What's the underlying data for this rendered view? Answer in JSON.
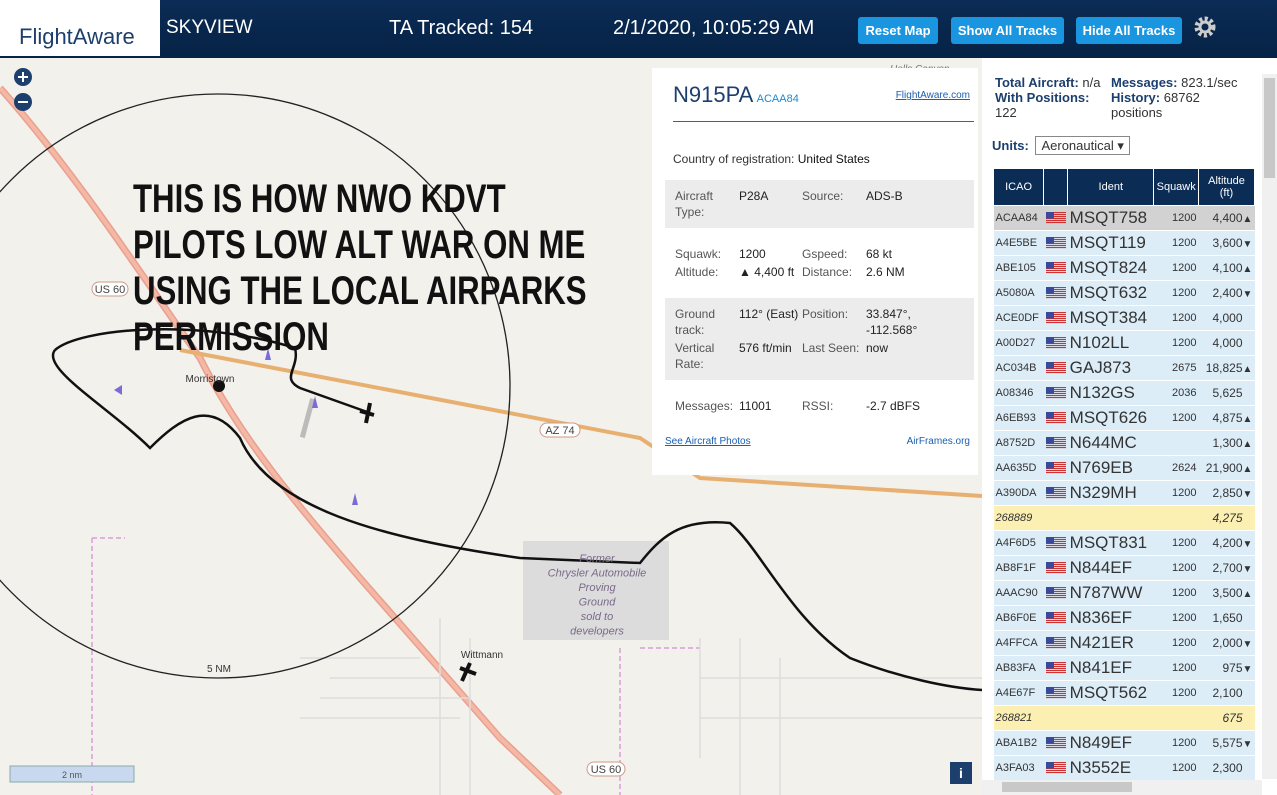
{
  "header": {
    "logo": "FlightAware",
    "app": "SKYVIEW",
    "tracked": "TA Tracked: 154",
    "datetime": "2/1/2020, 10:05:29 AM",
    "buttons": [
      "Reset Map",
      "Show All Tracks",
      "Hide All Tracks"
    ]
  },
  "map": {
    "annotation": [
      "THIS IS HOW NWO KDVT",
      "PILOTS LOW ALT WAR ON ME",
      "USING THE LOCAL AIRPARKS",
      "PERMISSION"
    ],
    "labels": {
      "us60_north": "US 60",
      "morristown": "Morristown",
      "az74": "AZ 74",
      "former": [
        "Former",
        "Chrysler Automobile",
        "Proving",
        "Ground",
        "sold to",
        "developers"
      ],
      "wittmann": "Wittmann",
      "range": "5 NM",
      "us60_south": "US 60",
      "scale": "2 nm",
      "corner": "Hells Canyon"
    }
  },
  "popup": {
    "registration": "N915PA",
    "hex": "ACAA84",
    "link": "FlightAware.com",
    "country_label": "Country of registration:",
    "country": "United States",
    "sections": [
      {
        "shaded": true,
        "fields": [
          {
            "label": "Aircraft Type:",
            "value": "P28A"
          },
          {
            "label": "Source:",
            "value": "ADS-B"
          }
        ]
      },
      {
        "shaded": false,
        "fields": [
          {
            "label": "Squawk:",
            "value": "1200"
          },
          {
            "label": "Gspeed:",
            "value": "68 kt"
          },
          {
            "label": "Altitude:",
            "value": "▲ 4,400 ft"
          },
          {
            "label": "Distance:",
            "value": "2.6 NM"
          }
        ]
      },
      {
        "shaded": true,
        "fields": [
          {
            "label": "Ground track:",
            "value": "112° (East)"
          },
          {
            "label": "Position:",
            "value": "33.847°, -112.568°"
          },
          {
            "label": "Vertical Rate:",
            "value": "576 ft/min"
          },
          {
            "label": "Last Seen:",
            "value": "now"
          }
        ]
      },
      {
        "shaded": false,
        "fields": [
          {
            "label": "Messages:",
            "value": "11001"
          },
          {
            "label": "RSSI:",
            "value": "-2.7 dBFS"
          }
        ]
      }
    ],
    "photos": "See Aircraft Photos",
    "airframes": "AirFrames.org"
  },
  "sidebar": {
    "stats": [
      {
        "label": "Total Aircraft:",
        "value": "n/a"
      },
      {
        "label": "Messages:",
        "value": "823.1/sec"
      },
      {
        "label": "With Positions:",
        "value": "122"
      },
      {
        "label": "History:",
        "value": "68762 positions"
      }
    ],
    "units_label": "Units:",
    "units": "Aeronautical",
    "table": {
      "headers": [
        "ICAO",
        "Ident",
        "Squawk",
        "Altitude (ft)"
      ],
      "rows": [
        {
          "icao": "ACAA84",
          "ident": "MSQT758",
          "squawk": "1200",
          "altitude": "4,400",
          "trend": "▲",
          "selected": true
        },
        {
          "icao": "A4E5BE",
          "ident": "MSQT119",
          "squawk": "1200",
          "altitude": "3,600",
          "trend": "▼"
        },
        {
          "icao": "ABE105",
          "ident": "MSQT824",
          "squawk": "1200",
          "altitude": "4,100",
          "trend": "▲"
        },
        {
          "icao": "A5080A",
          "ident": "MSQT632",
          "squawk": "1200",
          "altitude": "2,400",
          "trend": "▼"
        },
        {
          "icao": "ACE0DF",
          "ident": "MSQT384",
          "squawk": "1200",
          "altitude": "4,000"
        },
        {
          "icao": "A00D27",
          "ident": "N102LL",
          "squawk": "1200",
          "altitude": "4,000"
        },
        {
          "icao": "AC034B",
          "ident": "GAJ873",
          "squawk": "2675",
          "altitude": "18,825",
          "trend": "▲"
        },
        {
          "icao": "A08346",
          "ident": "N132GS",
          "squawk": "2036",
          "altitude": "5,625"
        },
        {
          "icao": "A6EB93",
          "ident": "MSQT626",
          "squawk": "1200",
          "altitude": "4,875",
          "trend": "▲"
        },
        {
          "icao": "A8752D",
          "ident": "N644MC",
          "altitude": "1,300",
          "trend": "▲"
        },
        {
          "icao": "AA635D",
          "ident": "N769EB",
          "squawk": "2624",
          "altitude": "21,900",
          "trend": "▲"
        },
        {
          "icao": "A390DA",
          "ident": "N329MH",
          "squawk": "1200",
          "altitude": "2,850",
          "trend": "▼"
        },
        {
          "icao": "268889",
          "altitude": "4,275"
        },
        {
          "icao": "A4F6D5",
          "ident": "MSQT831",
          "squawk": "1200",
          "altitude": "4,200",
          "trend": "▼"
        },
        {
          "icao": "AB8F1F",
          "ident": "N844EF",
          "squawk": "1200",
          "altitude": "2,700",
          "trend": "▼"
        },
        {
          "icao": "AAAC90",
          "ident": "N787WW",
          "squawk": "1200",
          "altitude": "3,500",
          "trend": "▲"
        },
        {
          "icao": "AB6F0E",
          "ident": "N836EF",
          "squawk": "1200",
          "altitude": "1,650"
        },
        {
          "icao": "A4FFCA",
          "ident": "N421ER",
          "squawk": "1200",
          "altitude": "2,000",
          "trend": "▼"
        },
        {
          "icao": "AB83FA",
          "ident": "N841EF",
          "squawk": "1200",
          "altitude": "975",
          "trend": "▼"
        },
        {
          "icao": "A4E67F",
          "ident": "MSQT562",
          "squawk": "1200",
          "altitude": "2,100"
        },
        {
          "icao": "268821",
          "altitude": "675"
        },
        {
          "icao": "ABA1B2",
          "ident": "N849EF",
          "squawk": "1200",
          "altitude": "5,575",
          "trend": "▼"
        },
        {
          "icao": "A3FA03",
          "ident": "N3552E",
          "squawk": "1200",
          "altitude": "2,300"
        }
      ]
    }
  }
}
